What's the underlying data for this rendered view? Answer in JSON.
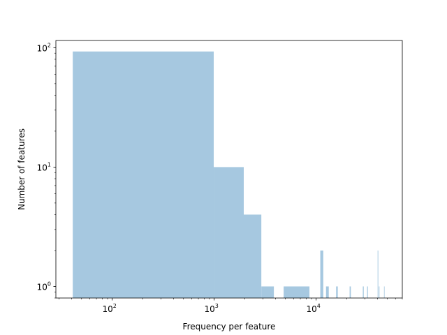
{
  "chart_data": {
    "type": "bar",
    "title": "",
    "xlabel": "Frequency per feature",
    "ylabel": "Number of features",
    "xscale": "log",
    "yscale": "log",
    "xlim": [
      28,
      70000
    ],
    "ylim": [
      0.8,
      115
    ],
    "grid": false,
    "bar_color": "#a6c8e0",
    "x_ticks": [
      {
        "value": 100,
        "base": "10",
        "exp": "2"
      },
      {
        "value": 1000,
        "base": "10",
        "exp": "3"
      },
      {
        "value": 10000,
        "base": "10",
        "exp": "4"
      }
    ],
    "y_ticks": [
      {
        "value": 1,
        "base": "10",
        "exp": "0"
      },
      {
        "value": 10,
        "base": "10",
        "exp": "1"
      },
      {
        "value": 100,
        "base": "10",
        "exp": "2"
      }
    ],
    "bins": [
      {
        "x0": 41,
        "x1": 990,
        "count": 93
      },
      {
        "x0": 990,
        "x1": 1950,
        "count": 10
      },
      {
        "x0": 1950,
        "x1": 2900,
        "count": 4
      },
      {
        "x0": 2900,
        "x1": 3850,
        "count": 1
      },
      {
        "x0": 4800,
        "x1": 8600,
        "count": 1
      },
      {
        "x0": 10980,
        "x1": 11750,
        "count": 2
      },
      {
        "x0": 12500,
        "x1": 13300,
        "count": 1
      },
      {
        "x0": 15700,
        "x1": 16300,
        "count": 1
      },
      {
        "x0": 21300,
        "x1": 21900,
        "count": 1
      },
      {
        "x0": 28700,
        "x1": 29300,
        "count": 1
      },
      {
        "x0": 31600,
        "x1": 32200,
        "count": 1
      },
      {
        "x0": 40100,
        "x1": 40700,
        "count": 2
      },
      {
        "x0": 41200,
        "x1": 41800,
        "count": 1
      },
      {
        "x0": 46300,
        "x1": 46700,
        "count": 1
      }
    ]
  }
}
